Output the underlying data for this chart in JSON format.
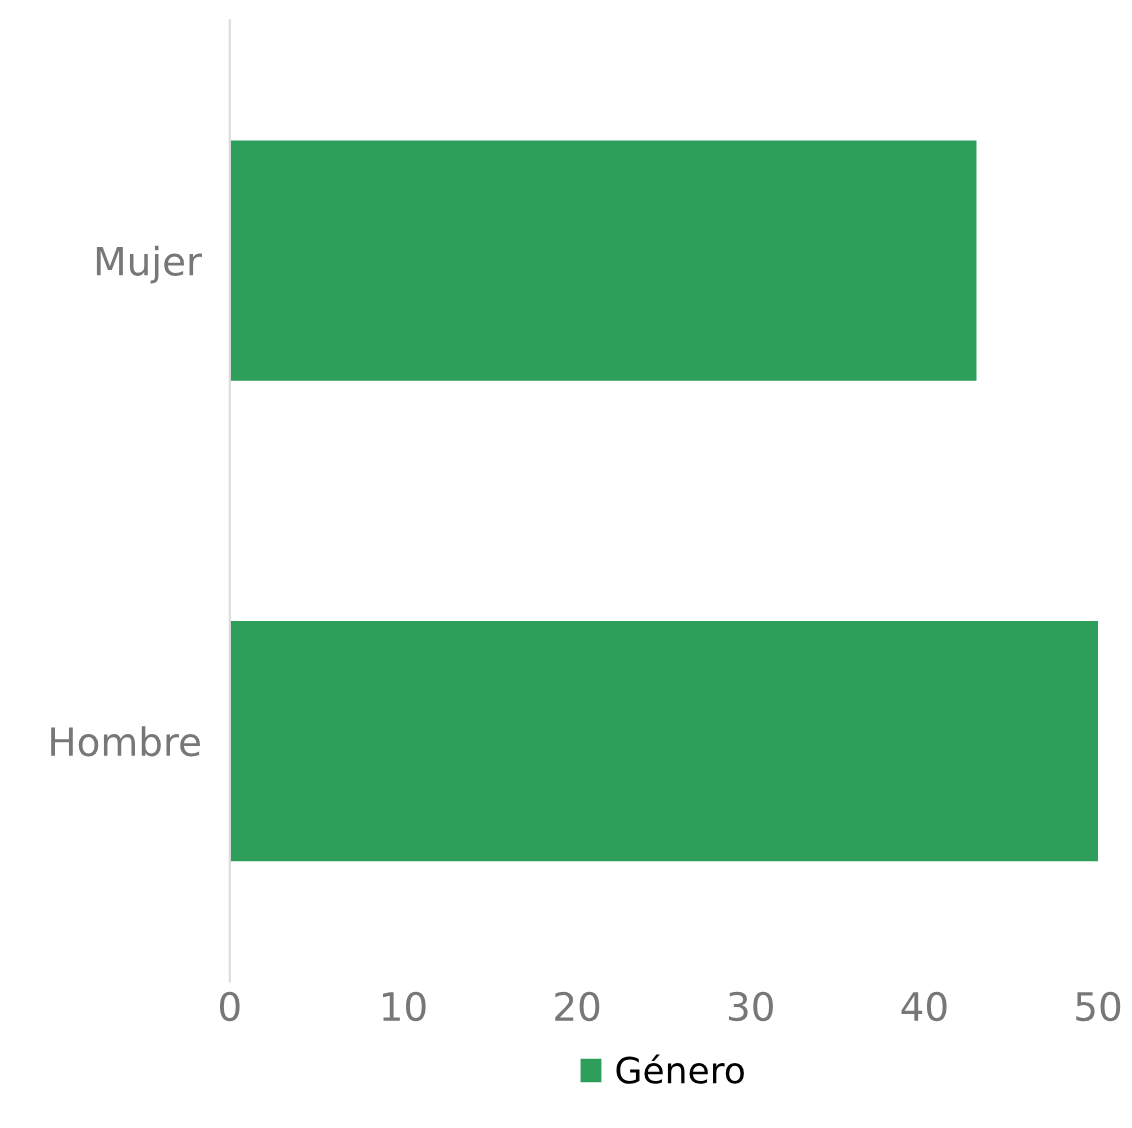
{
  "chart_data": {
    "type": "bar",
    "orientation": "horizontal",
    "categories": [
      "Mujer",
      "Hombre"
    ],
    "series": [
      {
        "name": "Género",
        "color": "#2e9e5b",
        "values": [
          43,
          50
        ]
      }
    ],
    "xlim": [
      0,
      50
    ],
    "xticks": [
      0,
      10,
      20,
      30,
      40,
      50
    ],
    "grid": false,
    "legend": "bottom"
  }
}
